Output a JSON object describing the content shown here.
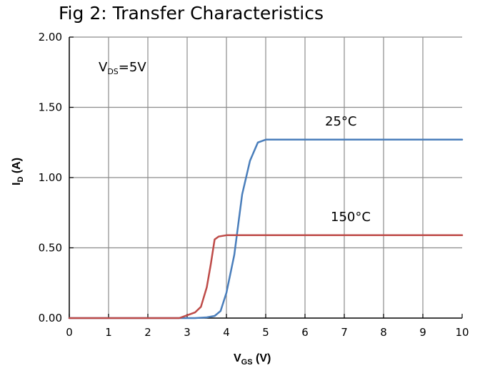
{
  "chart_data": {
    "type": "line",
    "title": "Fig 2: Transfer Characteristics",
    "xlabel": {
      "main": "V",
      "sub": "GS",
      "rest": " (V)"
    },
    "ylabel": {
      "main": "I",
      "sub": "D",
      "rest": " (A)"
    },
    "xlim": [
      0,
      10
    ],
    "ylim": [
      0,
      2
    ],
    "xticks": [
      "0",
      "1",
      "2",
      "3",
      "4",
      "5",
      "6",
      "7",
      "8",
      "9",
      "10"
    ],
    "yticks": [
      "0.00",
      "0.50",
      "1.00",
      "1.50",
      "2.00"
    ],
    "grid": true,
    "condition": {
      "main": "V",
      "sub": "DS",
      "rest": "=5V"
    },
    "series": [
      {
        "name": "25°C",
        "color": "#4a7ebb",
        "x": [
          0,
          3.2,
          3.5,
          3.7,
          3.85,
          4.0,
          4.2,
          4.4,
          4.6,
          4.8,
          5.0,
          10
        ],
        "y": [
          0,
          0,
          0.005,
          0.015,
          0.05,
          0.18,
          0.45,
          0.88,
          1.12,
          1.25,
          1.27,
          1.27
        ]
      },
      {
        "name": "150°C",
        "color": "#be4b48",
        "x": [
          0,
          2.8,
          3.0,
          3.2,
          3.35,
          3.5,
          3.6,
          3.7,
          3.8,
          4.0,
          10
        ],
        "y": [
          0,
          0,
          0.02,
          0.04,
          0.08,
          0.22,
          0.38,
          0.56,
          0.58,
          0.59,
          0.59
        ]
      }
    ]
  }
}
